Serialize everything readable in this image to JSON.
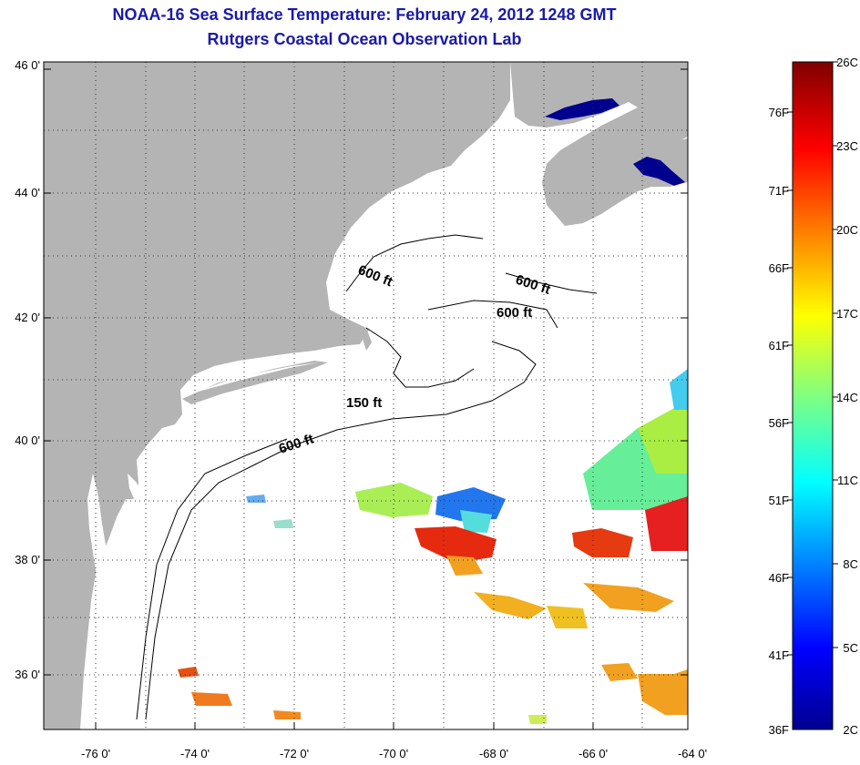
{
  "header": {
    "title": "NOAA-16 Sea Surface Temperature:  February 24, 2012 1248 GMT",
    "subtitle": "Rutgers Coastal Ocean Observation Lab"
  },
  "axes": {
    "lat_labels": [
      "46 0'",
      "44 0'",
      "42 0'",
      "40 0'",
      "38 0'",
      "36 0'"
    ],
    "lon_labels": [
      "-76 0'",
      "-74 0'",
      "-72 0'",
      "-70 0'",
      "-68 0'",
      "-66 0'",
      "-64 0'"
    ]
  },
  "contours": {
    "c1": "600 ft",
    "c2": "600 ft",
    "c3": "600 ft",
    "c4": "150 ft",
    "c5": "600 ft"
  },
  "colorbar": {
    "fahrenheit": [
      "76F",
      "71F",
      "66F",
      "61F",
      "56F",
      "51F",
      "46F",
      "41F",
      "36F"
    ],
    "celsius": [
      "26C",
      "23C",
      "20C",
      "17C",
      "14C",
      "11C",
      "8C",
      "5C",
      "2C"
    ]
  },
  "colors": {
    "land": "#b4b4b4",
    "ocean": "#ffffff",
    "title": "#1a1aa8"
  }
}
